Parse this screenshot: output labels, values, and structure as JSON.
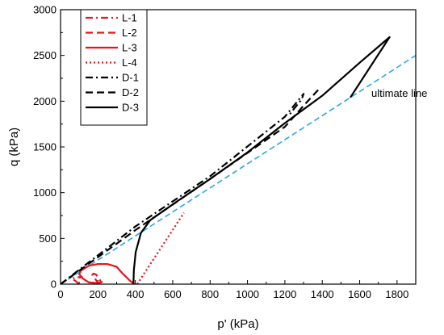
{
  "chart_data": {
    "type": "line",
    "xlabel": "p' (kPa)",
    "ylabel": "q (kPa)",
    "xlim": [
      0,
      1900
    ],
    "ylim": [
      0,
      3000
    ],
    "x_ticks": [
      "0",
      "200",
      "400",
      "600",
      "800",
      "1000",
      "1200",
      "1400",
      "1600",
      "1800"
    ],
    "y_ticks": [
      "0",
      "500",
      "1000",
      "1500",
      "2000",
      "2500",
      "3000"
    ],
    "legend_position": "top-left",
    "colors": {
      "red": "#e8141a",
      "black": "#000000",
      "ultimate": "#2aa8e0"
    },
    "series": [
      {
        "name": "L-1",
        "color": "#e8141a",
        "dash": "dashdot",
        "points": [
          [
            100,
            0
          ],
          [
            80,
            35
          ],
          [
            60,
            60
          ],
          [
            80,
            70
          ],
          [
            110,
            80
          ],
          [
            115,
            78
          ],
          [
            100,
            70
          ]
        ]
      },
      {
        "name": "L-2",
        "color": "#e8141a",
        "dash": "dashed",
        "points": [
          [
            210,
            0
          ],
          [
            195,
            30
          ],
          [
            170,
            100
          ],
          [
            175,
            115
          ],
          [
            190,
            105
          ],
          [
            210,
            50
          ],
          [
            215,
            20
          ]
        ]
      },
      {
        "name": "L-3",
        "color": "#e8141a",
        "dash": "solid",
        "points": [
          [
            395,
            0
          ],
          [
            370,
            40
          ],
          [
            330,
            120
          ],
          [
            300,
            190
          ],
          [
            250,
            220
          ],
          [
            200,
            220
          ],
          [
            150,
            200
          ],
          [
            110,
            150
          ],
          [
            100,
            110
          ],
          [
            120,
            60
          ],
          [
            150,
            20
          ],
          [
            200,
            10
          ],
          [
            225,
            25
          ]
        ]
      },
      {
        "name": "L-4",
        "color": "#e8141a",
        "dash": "dotted",
        "points": [
          [
            410,
            0
          ],
          [
            660,
            780
          ]
        ]
      },
      {
        "name": "D-1",
        "color": "#000000",
        "dash": "dashdot",
        "points": [
          [
            0,
            0
          ],
          [
            400,
            630
          ],
          [
            800,
            1180
          ],
          [
            1200,
            1830
          ],
          [
            1300,
            2080
          ],
          [
            1290,
            2020
          ],
          [
            1250,
            1920
          ],
          [
            1220,
            1840
          ]
        ]
      },
      {
        "name": "D-2",
        "color": "#000000",
        "dash": "dashed",
        "points": [
          [
            0,
            0
          ],
          [
            400,
            590
          ],
          [
            800,
            1150
          ],
          [
            1200,
            1720
          ],
          [
            1300,
            1950
          ],
          [
            1390,
            2150
          ]
        ]
      },
      {
        "name": "D-3",
        "color": "#000000",
        "dash": "solid",
        "points": [
          [
            390,
            0
          ],
          [
            392,
            150
          ],
          [
            402,
            350
          ],
          [
            430,
            560
          ],
          [
            480,
            700
          ],
          [
            620,
            900
          ],
          [
            800,
            1150
          ],
          [
            1000,
            1440
          ],
          [
            1200,
            1760
          ],
          [
            1400,
            2060
          ],
          [
            1600,
            2420
          ],
          [
            1760,
            2700
          ],
          [
            1550,
            2040
          ]
        ]
      }
    ],
    "ultimate_line": {
      "label": "ultimate line",
      "color": "#2aa8e0",
      "points": [
        [
          0,
          0
        ],
        [
          1900,
          2500
        ]
      ]
    }
  }
}
